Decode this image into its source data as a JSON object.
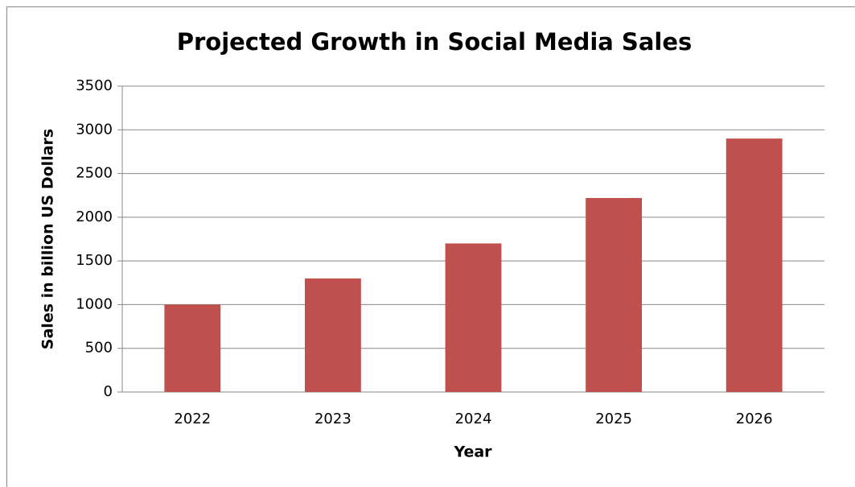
{
  "chart_data": {
    "type": "bar",
    "title": "Projected Growth in Social Media Sales",
    "x_label": "Year",
    "y_label": "Sales in billion US Dollars",
    "categories": [
      "2022",
      "2023",
      "2024",
      "2025",
      "2026"
    ],
    "values": [
      1000,
      1300,
      1700,
      2220,
      2900
    ],
    "color": "#c0504d",
    "ylim": [
      0,
      3500
    ],
    "yticks": [
      0,
      500,
      1000,
      1500,
      2000,
      2500,
      3000,
      3500
    ],
    "grid": true
  }
}
